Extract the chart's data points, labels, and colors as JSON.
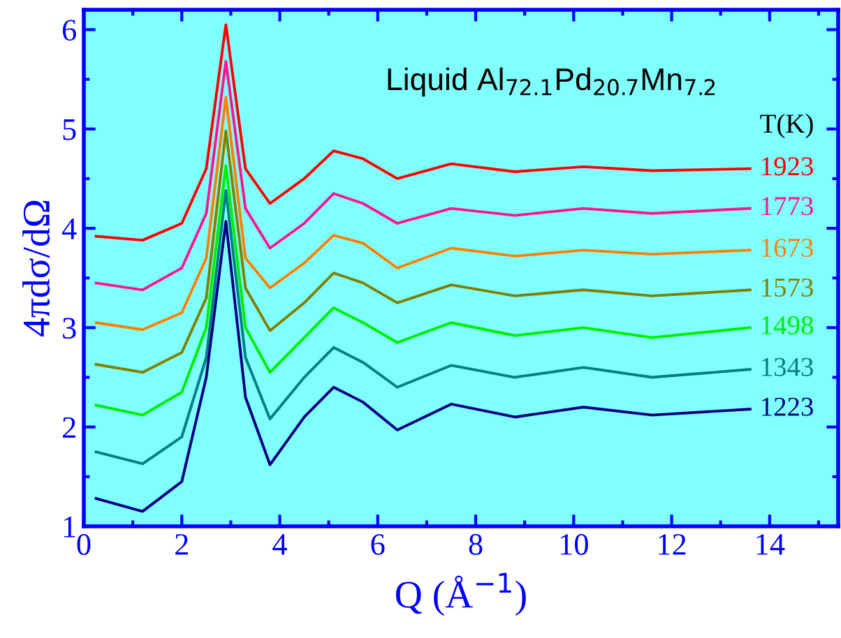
{
  "chart_data": {
    "type": "line",
    "title": "Liquid Al$_{72.1}$Pd$_{20.7}$Mn$_{7.2}$",
    "xlabel": "Q (Å$^{−1}$)",
    "ylabel": "4πdσ/dΩ",
    "legend_title": "T(K)",
    "x": [
      0.25,
      1.2,
      2.0,
      2.5,
      2.9,
      3.3,
      3.8,
      4.5,
      5.1,
      5.7,
      6.4,
      7.5,
      8.8,
      10.2,
      11.6,
      13.6
    ],
    "series": [
      {
        "name": "1923",
        "color": "#ff0000",
        "values": [
          3.92,
          3.88,
          4.05,
          4.6,
          6.05,
          4.6,
          4.25,
          4.5,
          4.78,
          4.7,
          4.5,
          4.65,
          4.57,
          4.62,
          4.58,
          4.6
        ]
      },
      {
        "name": "1773",
        "color": "#ff1493",
        "values": [
          3.45,
          3.38,
          3.6,
          4.15,
          5.68,
          4.2,
          3.8,
          4.05,
          4.35,
          4.25,
          4.05,
          4.2,
          4.13,
          4.2,
          4.15,
          4.2
        ]
      },
      {
        "name": "1673",
        "color": "#ff8000",
        "values": [
          3.05,
          2.98,
          3.15,
          3.7,
          5.32,
          3.7,
          3.4,
          3.65,
          3.93,
          3.85,
          3.6,
          3.8,
          3.72,
          3.78,
          3.74,
          3.78
        ]
      },
      {
        "name": "1573",
        "color": "#808000",
        "values": [
          2.63,
          2.55,
          2.75,
          3.3,
          4.98,
          3.4,
          2.97,
          3.25,
          3.55,
          3.45,
          3.25,
          3.43,
          3.32,
          3.38,
          3.32,
          3.38
        ]
      },
      {
        "name": "1498",
        "color": "#00ee00",
        "values": [
          2.22,
          2.12,
          2.35,
          3.0,
          4.63,
          3.0,
          2.55,
          2.9,
          3.2,
          3.05,
          2.85,
          3.05,
          2.92,
          3.0,
          2.9,
          3.0
        ]
      },
      {
        "name": "1343",
        "color": "#008080",
        "values": [
          1.75,
          1.63,
          1.9,
          2.7,
          4.38,
          2.7,
          2.08,
          2.5,
          2.8,
          2.65,
          2.4,
          2.62,
          2.5,
          2.6,
          2.5,
          2.58
        ]
      },
      {
        "name": "1223",
        "color": "#000080",
        "values": [
          1.28,
          1.15,
          1.45,
          2.5,
          4.07,
          2.3,
          1.62,
          2.1,
          2.4,
          2.25,
          1.97,
          2.23,
          2.1,
          2.2,
          2.12,
          2.18
        ]
      }
    ],
    "xlim": [
      0,
      15.4
    ],
    "ylim": [
      1,
      6.2
    ],
    "xticks": [
      0,
      2,
      4,
      6,
      8,
      10,
      12,
      14
    ],
    "yticks": [
      1,
      2,
      3,
      4,
      5,
      6
    ],
    "grid": false,
    "legend": false,
    "marker": "none",
    "line_style": "solid"
  }
}
